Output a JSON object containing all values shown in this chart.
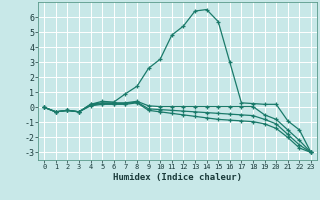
{
  "xlabel": "Humidex (Indice chaleur)",
  "bg_color": "#c8e8e8",
  "grid_color": "#ffffff",
  "line_color": "#1a7a6a",
  "xlim": [
    -0.5,
    23.5
  ],
  "ylim": [
    -3.5,
    7.0
  ],
  "yticks": [
    -3,
    -2,
    -1,
    0,
    1,
    2,
    3,
    4,
    5,
    6
  ],
  "xticks": [
    0,
    1,
    2,
    3,
    4,
    5,
    6,
    7,
    8,
    9,
    10,
    11,
    12,
    13,
    14,
    15,
    16,
    17,
    18,
    19,
    20,
    21,
    22,
    23
  ],
  "series": [
    {
      "x": [
        0,
        1,
        2,
        3,
        4,
        5,
        6,
        7,
        8,
        9,
        10,
        11,
        12,
        13,
        14,
        15,
        16,
        17,
        18,
        19,
        20,
        21,
        22,
        23
      ],
      "y": [
        0,
        -0.3,
        -0.2,
        -0.3,
        0.2,
        0.4,
        0.35,
        0.9,
        1.4,
        2.6,
        3.2,
        4.8,
        5.4,
        6.4,
        6.5,
        5.7,
        3.0,
        0.3,
        0.25,
        0.2,
        0.2,
        -0.9,
        -1.5,
        -3.0
      ]
    },
    {
      "x": [
        0,
        1,
        2,
        3,
        4,
        5,
        6,
        7,
        8,
        9,
        10,
        11,
        12,
        13,
        14,
        15,
        16,
        17,
        18,
        19,
        20,
        21,
        22,
        23
      ],
      "y": [
        0,
        -0.3,
        -0.2,
        -0.3,
        0.2,
        0.3,
        0.3,
        0.3,
        0.4,
        0.1,
        0.05,
        0.05,
        0.05,
        0.05,
        0.05,
        0.05,
        0.05,
        0.05,
        0.05,
        -0.5,
        -0.8,
        -1.5,
        -2.2,
        -3.0
      ]
    },
    {
      "x": [
        0,
        1,
        2,
        3,
        4,
        5,
        6,
        7,
        8,
        9,
        10,
        11,
        12,
        13,
        14,
        15,
        16,
        17,
        18,
        19,
        20,
        21,
        22,
        23
      ],
      "y": [
        0,
        -0.3,
        -0.2,
        -0.3,
        0.15,
        0.25,
        0.25,
        0.25,
        0.35,
        -0.1,
        -0.15,
        -0.2,
        -0.25,
        -0.3,
        -0.35,
        -0.4,
        -0.45,
        -0.5,
        -0.55,
        -0.8,
        -1.1,
        -1.8,
        -2.5,
        -3.0
      ]
    },
    {
      "x": [
        0,
        1,
        2,
        3,
        4,
        5,
        6,
        7,
        8,
        9,
        10,
        11,
        12,
        13,
        14,
        15,
        16,
        17,
        18,
        19,
        20,
        21,
        22,
        23
      ],
      "y": [
        0,
        -0.3,
        -0.2,
        -0.3,
        0.1,
        0.2,
        0.2,
        0.2,
        0.3,
        -0.2,
        -0.3,
        -0.4,
        -0.5,
        -0.6,
        -0.7,
        -0.8,
        -0.85,
        -0.9,
        -0.95,
        -1.1,
        -1.4,
        -2.0,
        -2.7,
        -3.0
      ]
    }
  ]
}
